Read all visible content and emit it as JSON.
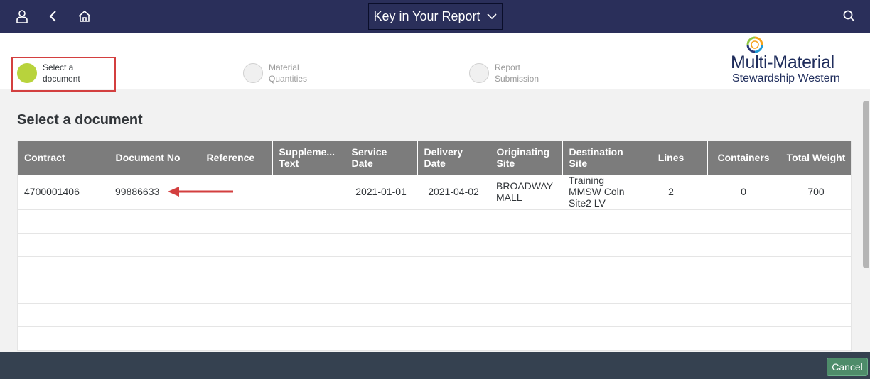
{
  "header": {
    "title": "Key in Your Report",
    "icons": [
      "user-icon",
      "back-icon",
      "home-icon",
      "search-icon"
    ]
  },
  "wizard": {
    "steps": [
      {
        "label": "Select a document",
        "active": true
      },
      {
        "label": "Material Quantities",
        "active": false
      },
      {
        "label": "Report Submission",
        "active": false
      }
    ],
    "accent_color": "#b8d33c",
    "highlight_color": "#d33f3f"
  },
  "logo": {
    "line1": "Multi-Material",
    "line2": "Stewardship Western"
  },
  "main": {
    "title": "Select a document",
    "columns": [
      "Contract",
      "Document No",
      "Reference",
      "Suppleme... Text",
      "Service Date",
      "Delivery Date",
      "Originating Site",
      "Destination Site",
      "Lines",
      "Containers",
      "Total Weight"
    ],
    "rows": [
      {
        "contract": "4700001406",
        "document_no": "99886633",
        "reference": "",
        "supplement_text": "",
        "service_date": "2021-01-01",
        "delivery_date": "2021-04-02",
        "originating_site": "BROADWAY MALL",
        "destination_site": "Training MMSW Coln Site2 LV",
        "lines": "2",
        "containers": "0",
        "total_weight": "700"
      }
    ]
  },
  "footer": {
    "cancel_label": "Cancel"
  },
  "colors": {
    "shell": "#2a2f5a",
    "table_header": "#7c7c7c",
    "footer": "#354150",
    "cancel_button": "#4e8c6a",
    "arrow": "#d33f3f"
  }
}
